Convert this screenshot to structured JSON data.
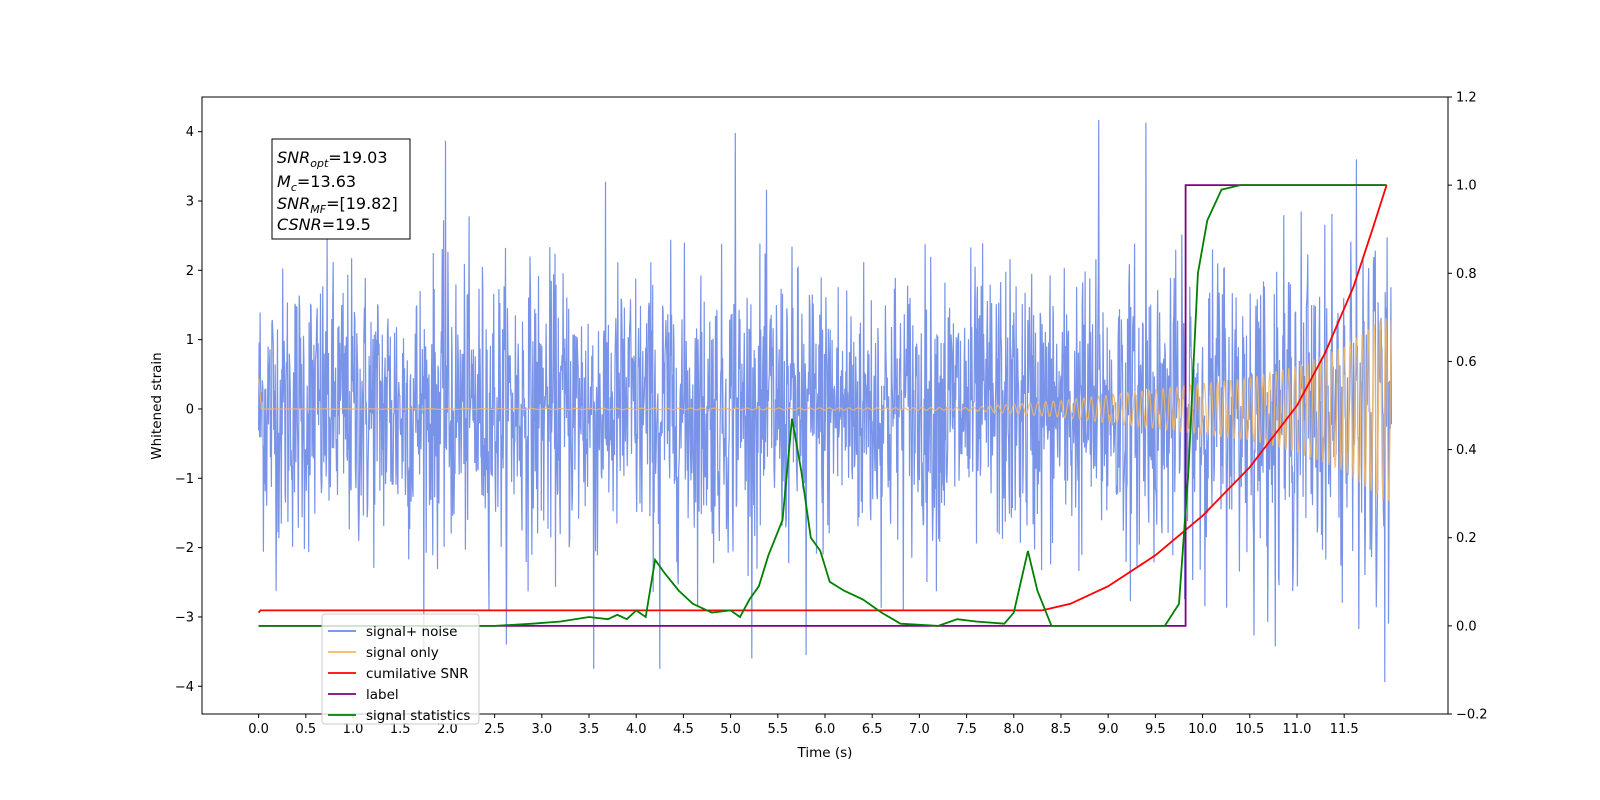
{
  "chart_data": {
    "type": "line",
    "xlabel": "Time (s)",
    "ylabel": "Whitened strain",
    "xlim": [
      -0.6,
      12.6
    ],
    "ylim": [
      -4.4,
      4.5
    ],
    "y2lim": [
      -0.2,
      1.2
    ],
    "x_ticks": [
      "0.0",
      "0.5",
      "1.0",
      "1.5",
      "2.0",
      "2.5",
      "3.0",
      "3.5",
      "4.0",
      "4.5",
      "5.0",
      "5.5",
      "6.0",
      "6.5",
      "7.0",
      "7.5",
      "8.0",
      "8.5",
      "9.0",
      "9.5",
      "10.0",
      "10.5",
      "11.0",
      "11.5"
    ],
    "y_ticks": [
      "−4",
      "−3",
      "−2",
      "−1",
      "0",
      "1",
      "2",
      "3",
      "4"
    ],
    "y2_ticks": [
      "−0.2",
      "0.0",
      "0.2",
      "0.4",
      "0.6",
      "0.8",
      "1.0",
      "1.2"
    ],
    "annotation": {
      "snr_opt": {
        "sym": "SNR",
        "sub": "opt",
        "value": "=19.03"
      },
      "mc": {
        "sym": "M",
        "sub": "c",
        "value": "=13.63"
      },
      "snr_mf": {
        "sym": "SNR",
        "sub": "MF",
        "value": "=[19.82]"
      },
      "csnr": {
        "sym": "CSNR",
        "sub": "",
        "value": "=19.5"
      }
    },
    "legend": {
      "placement": "lower-left",
      "entries": [
        {
          "name": "signal+ noise",
          "color": "#6d8ae6"
        },
        {
          "name": "signal only",
          "color": "#f5b860"
        },
        {
          "name": "cumilative SNR",
          "color": "#ff0000"
        },
        {
          "name": "label",
          "color": "#800080"
        },
        {
          "name": "signal statistics",
          "color": "#008000"
        }
      ]
    },
    "series": [
      {
        "name": "signal+ noise",
        "axis": "left",
        "color": "#6d8ae6",
        "description_of_shape": "dense noise, amplitude ~±2.5, peaks near 4",
        "t_range": [
          0,
          12
        ],
        "noise_sigma": 1.0,
        "extreme_peaks": [
          [
            1.98,
            3.87
          ],
          [
            5.05,
            3.98
          ],
          [
            8.9,
            4.17
          ],
          [
            9.4,
            4.13
          ],
          [
            3.55,
            -3.75
          ],
          [
            4.25,
            -3.75
          ],
          [
            11.93,
            -3.94
          ],
          [
            5.8,
            -3.55
          ]
        ]
      },
      {
        "name": "signal only",
        "axis": "left",
        "color": "#f5b860",
        "t_range": [
          0,
          12
        ],
        "envelope": [
          [
            0,
            0.0
          ],
          [
            7.5,
            0.02
          ],
          [
            8.5,
            0.12
          ],
          [
            9.5,
            0.28
          ],
          [
            10.5,
            0.45
          ],
          [
            11.0,
            0.62
          ],
          [
            11.5,
            0.9
          ],
          [
            11.9,
            1.3
          ],
          [
            12.0,
            1.35
          ]
        ]
      },
      {
        "name": "cumilative SNR",
        "axis": "right",
        "color": "#ff0000",
        "points": [
          [
            0,
            0.03
          ],
          [
            0.02,
            0.035
          ],
          [
            8.3,
            0.035
          ],
          [
            8.6,
            0.05
          ],
          [
            9.0,
            0.09
          ],
          [
            9.5,
            0.16
          ],
          [
            10.0,
            0.25
          ],
          [
            10.5,
            0.36
          ],
          [
            11.0,
            0.5
          ],
          [
            11.3,
            0.62
          ],
          [
            11.6,
            0.77
          ],
          [
            11.8,
            0.9
          ],
          [
            11.95,
            1.0
          ]
        ]
      },
      {
        "name": "label",
        "axis": "right",
        "color": "#800080",
        "points": [
          [
            0,
            0.0
          ],
          [
            9.82,
            0.0
          ],
          [
            9.82,
            1.0
          ],
          [
            11.95,
            1.0
          ]
        ]
      },
      {
        "name": "signal statistics",
        "axis": "right",
        "color": "#008000",
        "points": [
          [
            0,
            0.0
          ],
          [
            2.5,
            0.0
          ],
          [
            2.9,
            0.005
          ],
          [
            3.2,
            0.01
          ],
          [
            3.5,
            0.02
          ],
          [
            3.7,
            0.015
          ],
          [
            3.8,
            0.025
          ],
          [
            3.9,
            0.015
          ],
          [
            4.0,
            0.035
          ],
          [
            4.1,
            0.02
          ],
          [
            4.2,
            0.15
          ],
          [
            4.3,
            0.12
          ],
          [
            4.45,
            0.08
          ],
          [
            4.6,
            0.05
          ],
          [
            4.8,
            0.03
          ],
          [
            5.0,
            0.035
          ],
          [
            5.1,
            0.02
          ],
          [
            5.2,
            0.06
          ],
          [
            5.3,
            0.09
          ],
          [
            5.4,
            0.16
          ],
          [
            5.55,
            0.24
          ],
          [
            5.65,
            0.47
          ],
          [
            5.75,
            0.35
          ],
          [
            5.85,
            0.2
          ],
          [
            5.95,
            0.17
          ],
          [
            6.05,
            0.1
          ],
          [
            6.2,
            0.08
          ],
          [
            6.4,
            0.06
          ],
          [
            6.6,
            0.03
          ],
          [
            6.8,
            0.005
          ],
          [
            7.2,
            0.0
          ],
          [
            7.4,
            0.015
          ],
          [
            7.6,
            0.01
          ],
          [
            7.9,
            0.005
          ],
          [
            8.0,
            0.03
          ],
          [
            8.15,
            0.17
          ],
          [
            8.25,
            0.08
          ],
          [
            8.4,
            0.0
          ],
          [
            9.6,
            0.0
          ],
          [
            9.75,
            0.05
          ],
          [
            9.85,
            0.35
          ],
          [
            9.95,
            0.8
          ],
          [
            10.05,
            0.92
          ],
          [
            10.2,
            0.99
          ],
          [
            10.4,
            1.0
          ],
          [
            11.95,
            1.0
          ]
        ]
      }
    ]
  }
}
